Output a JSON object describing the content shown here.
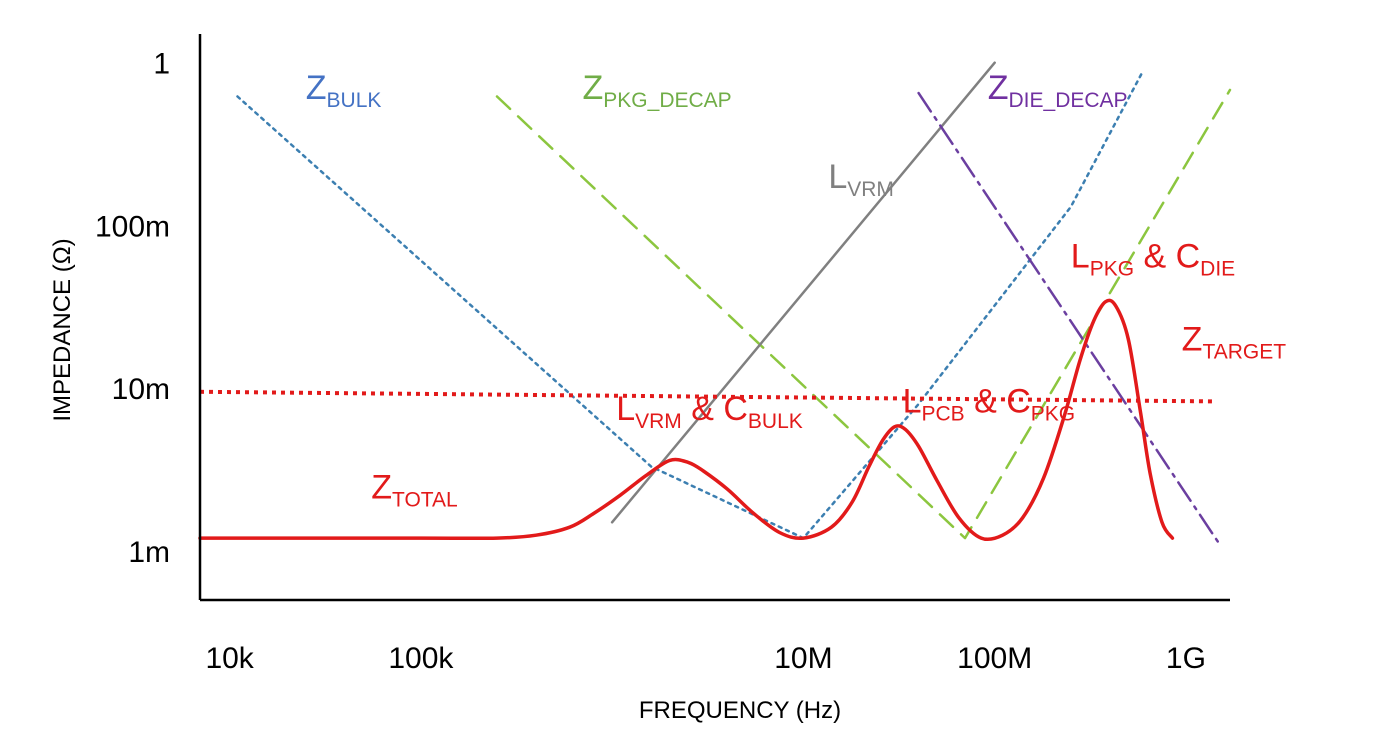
{
  "chart_data": {
    "type": "line",
    "xlabel": "FREQUENCY (Hz)",
    "ylabel": "IMPEDANCE (Ω)",
    "x_scale": "log",
    "y_scale": "log",
    "xlim": [
      "7k",
      "1.7G"
    ],
    "ylim": [
      "0.5m",
      "1.5"
    ],
    "x_ticks": [
      "10k",
      "100k",
      "10M",
      "100M",
      "1G"
    ],
    "y_ticks": [
      "1m",
      "10m",
      "100m",
      "1"
    ],
    "grid": false,
    "legend": "none",
    "colors": {
      "total": "#e21a1a",
      "target": "#e21a1a",
      "bulk": "#3c7fb1",
      "pkg_decap": "#8cc63f",
      "vrm": "#808080",
      "die_decap": "#6b3fa0",
      "label_bulk": "#4472c4",
      "label_pkg_decap": "#70ad47",
      "label_vrm": "#808080",
      "label_die_decap": "#7030a0"
    },
    "series": [
      {
        "id": "bulk",
        "style": "dotted",
        "points": [
          [
            11000.0,
            0.62
          ],
          [
            1600000.0,
            0.0033
          ],
          [
            10000000.0,
            0.0012
          ],
          [
            40000000.0,
            0.008
          ],
          [
            250000000.0,
            0.13
          ],
          [
            600000000.0,
            0.9
          ]
        ]
      },
      {
        "id": "pkg_decap",
        "style": "dashed",
        "points": [
          [
            250000.0,
            0.62
          ],
          [
            70000000.0,
            0.0012
          ],
          [
            1700000000.0,
            0.68
          ]
        ]
      },
      {
        "id": "vrm",
        "style": "solid",
        "points": [
          [
            1000000.0,
            0.0015
          ],
          [
            100000000.0,
            1.0
          ]
        ]
      },
      {
        "id": "die_decap",
        "style": "dashdot",
        "points": [
          [
            40000000.0,
            0.65
          ],
          [
            1500000000.0,
            0.0011
          ]
        ]
      },
      {
        "id": "target",
        "style": "dotted",
        "points": [
          [
            7000.0,
            0.0095
          ],
          [
            1400000000.0,
            0.0083
          ]
        ]
      },
      {
        "id": "total",
        "style": "solid",
        "points": [
          [
            7000.0,
            0.0012
          ],
          [
            100000.0,
            0.0012
          ],
          [
            250000.0,
            0.0012
          ],
          [
            400000.0,
            0.00125
          ],
          [
            600000.0,
            0.0014
          ],
          [
            800000.0,
            0.0017
          ],
          [
            1100000.0,
            0.0022
          ],
          [
            1500000.0,
            0.0029
          ],
          [
            2000000.0,
            0.0036
          ],
          [
            2500000.0,
            0.0035
          ],
          [
            3000000.0,
            0.0031
          ],
          [
            4000000.0,
            0.0024
          ],
          [
            5500000.0,
            0.0017
          ],
          [
            7500000.0,
            0.0013
          ],
          [
            10000000.0,
            0.0012
          ],
          [
            14000000.0,
            0.0014
          ],
          [
            18000000.0,
            0.002
          ],
          [
            22000000.0,
            0.0033
          ],
          [
            26000000.0,
            0.0048
          ],
          [
            30000000.0,
            0.0058
          ],
          [
            34000000.0,
            0.0056
          ],
          [
            40000000.0,
            0.0044
          ],
          [
            50000000.0,
            0.0027
          ],
          [
            65000000.0,
            0.0016
          ],
          [
            85000000.0,
            0.0012
          ],
          [
            110000000.0,
            0.00125
          ],
          [
            140000000.0,
            0.0016
          ],
          [
            180000000.0,
            0.0028
          ],
          [
            230000000.0,
            0.0066
          ],
          [
            280000000.0,
            0.015
          ],
          [
            330000000.0,
            0.026
          ],
          [
            380000000.0,
            0.034
          ],
          [
            430000000.0,
            0.032
          ],
          [
            500000000.0,
            0.02
          ],
          [
            580000000.0,
            0.007
          ],
          [
            650000000.0,
            0.003
          ],
          [
            750000000.0,
            0.0015
          ],
          [
            850000000.0,
            0.0012
          ]
        ]
      }
    ],
    "labels": [
      {
        "id": "bulk",
        "main": "Z",
        "sub": "BULK",
        "tail_main": "",
        "tail_sub": "",
        "x": 25000.0,
        "y": 0.6
      },
      {
        "id": "pkg_decap",
        "main": "Z",
        "sub": "PKG_DECAP",
        "tail_main": "",
        "tail_sub": "",
        "x": 700000.0,
        "y": 0.6
      },
      {
        "id": "vrm",
        "main": "L",
        "sub": "VRM",
        "tail_main": "",
        "tail_sub": "",
        "x": 13500000.0,
        "y": 0.17
      },
      {
        "id": "die_decap",
        "main": "Z",
        "sub": "DIE_DECAP",
        "tail_main": "",
        "tail_sub": "",
        "x": 92000000.0,
        "y": 0.6
      },
      {
        "id": "total",
        "main": "Z",
        "sub": "TOTAL",
        "tail_main": "",
        "tail_sub": "",
        "x": 55000.0,
        "y": 0.0021
      },
      {
        "id": "vrm_bulk",
        "main": "L",
        "sub": "VRM",
        "tail_main": " & C",
        "tail_sub": "BULK",
        "x": 1050000.0,
        "y": 0.0064
      },
      {
        "id": "pcb_pkg",
        "main": "L",
        "sub": "PCB",
        "tail_main": " & C",
        "tail_sub": "PKG",
        "x": 33000000.0,
        "y": 0.0071
      },
      {
        "id": "pkg_die",
        "main": "L",
        "sub": "PKG",
        "tail_main": " & C",
        "tail_sub": "DIE",
        "x": 250000000.0,
        "y": 0.055
      },
      {
        "id": "target",
        "main": "Z",
        "sub": "TARGET",
        "tail_main": "",
        "tail_sub": "",
        "x": 950000000.0,
        "y": 0.017
      }
    ]
  }
}
